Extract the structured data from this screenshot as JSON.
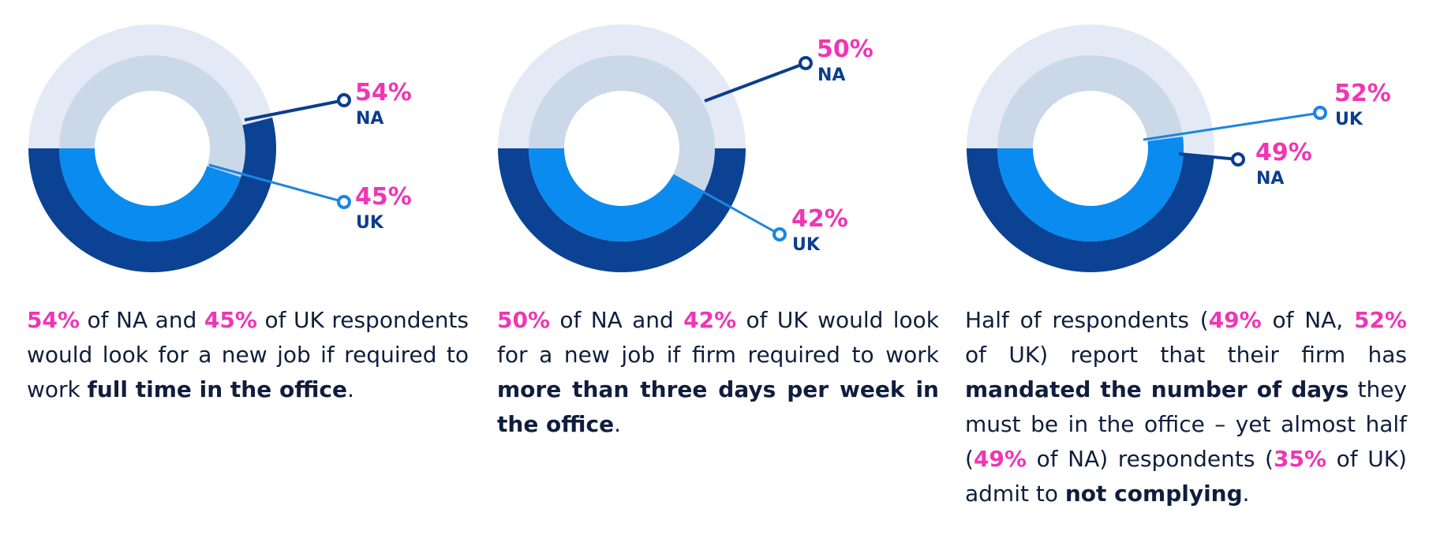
{
  "colors": {
    "na_outer": "#0b4294",
    "uk_inner": "#0a8bef",
    "outer_track": "#e3eaf5",
    "inner_track": "#cbd8e8",
    "highlight": "#ef36b4",
    "na_leader": "#0b3e8c",
    "uk_leader": "#1a86e0",
    "text": "#0f1e3d"
  },
  "chart_data": [
    {
      "type": "pie",
      "series": [
        {
          "name": "NA",
          "values": [
            54
          ]
        },
        {
          "name": "UK",
          "values": [
            45
          ]
        }
      ],
      "labels": {
        "na": {
          "value": "54%",
          "name": "NA"
        },
        "uk": {
          "value": "45%",
          "name": "UK"
        }
      }
    },
    {
      "type": "pie",
      "series": [
        {
          "name": "NA",
          "values": [
            50
          ]
        },
        {
          "name": "UK",
          "values": [
            42
          ]
        }
      ],
      "labels": {
        "na": {
          "value": "50%",
          "name": "NA"
        },
        "uk": {
          "value": "42%",
          "name": "UK"
        }
      }
    },
    {
      "type": "pie",
      "series": [
        {
          "name": "NA",
          "values": [
            49
          ]
        },
        {
          "name": "UK",
          "values": [
            52
          ]
        }
      ],
      "labels": {
        "na": {
          "value": "49%",
          "name": "NA"
        },
        "uk": {
          "value": "52%",
          "name": "UK"
        }
      }
    }
  ],
  "captions": [
    {
      "p1": "54%",
      "p2": " of NA and ",
      "p3": "45%",
      "p4": " of UK respondents would look for a new job if required to work ",
      "p5": "full time in the office",
      "p6": "."
    },
    {
      "p1": "50%",
      "p2": " of NA and ",
      "p3": "42%",
      "p4": " of UK would look for a new job if firm required to work ",
      "p5": "more than three days per week in the office",
      "p6": "."
    },
    {
      "p1": "Half of respondents (",
      "p2": "49%",
      "p3": " of NA, ",
      "p4": "52%",
      "p5": " of UK) report that their firm has ",
      "p6": "mandated the number of days",
      "p7": " they must be in the office – yet almost half (",
      "p8": "49%",
      "p9": " of NA) respondents (",
      "p10": "35%",
      "p11": " of UK) admit to ",
      "p12": "not complying",
      "p13": "."
    }
  ]
}
